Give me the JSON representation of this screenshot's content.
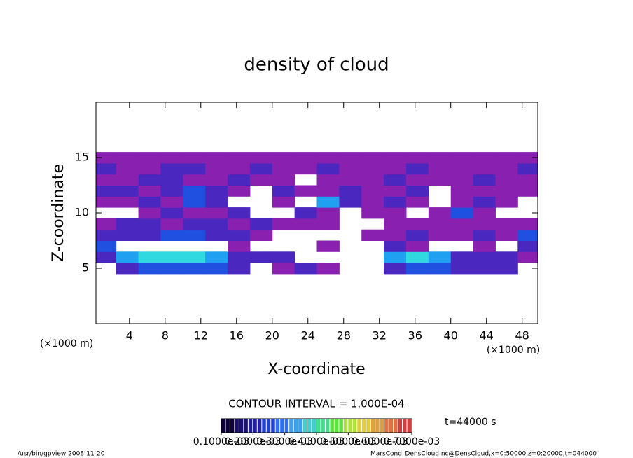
{
  "chart_data": {
    "type": "contour",
    "title": "density of cloud",
    "x_label": "X-coordinate",
    "y_label": "Z-coordinate",
    "x_unit_label": "(×1000 m)",
    "y_unit_label": "(×1000 m)",
    "contour_interval": "CONTOUR INTERVAL = 1.000E-04",
    "time_label": "t=44000 s",
    "footer_left": "/usr/bin/gpview   2008-11-20",
    "footer_right": "MarsCond_DensCloud.nc@DensCloud,x=0:50000,z=0:20000,t=044000",
    "xlim": [
      0.25,
      49.75
    ],
    "ylim": [
      0,
      20
    ],
    "xticks": [
      4,
      8,
      12,
      16,
      20,
      24,
      28,
      32,
      36,
      40,
      44,
      48
    ],
    "yticks": [
      5,
      10,
      15
    ],
    "x": [
      1.25,
      3.75,
      6.25,
      8.75,
      11.25,
      13.75,
      16.25,
      18.75,
      21.25,
      23.75,
      26.25,
      28.75,
      31.25,
      33.75,
      36.25,
      38.75,
      41.25,
      43.75,
      46.25,
      48.75
    ],
    "y": [
      5,
      6,
      7,
      8,
      9,
      10,
      11,
      12,
      13,
      14,
      15
    ],
    "levels": [
      0.0001,
      0.0002,
      0.0003,
      0.0004,
      0.0005
    ],
    "level_colors": [
      "#8a20b0",
      "#4a28c0",
      "#2050e0",
      "#20a0f0",
      "#30d8e0"
    ],
    "z": [
      [
        null,
        0.0002,
        0.0003,
        0.0003,
        0.0003,
        0.0003,
        0.0002,
        null,
        0.0001,
        0.0002,
        0.0001,
        null,
        null,
        0.0002,
        0.0003,
        0.0003,
        0.0002,
        0.0002,
        0.0002,
        null
      ],
      [
        0.0002,
        0.0004,
        0.0005,
        0.0005,
        0.0005,
        0.0004,
        0.0002,
        0.0002,
        0.0002,
        null,
        null,
        null,
        null,
        0.0004,
        0.0005,
        0.0004,
        0.0002,
        0.0002,
        0.0002,
        0.0001
      ],
      [
        0.0003,
        null,
        null,
        null,
        null,
        null,
        0.0001,
        null,
        null,
        null,
        0.0001,
        null,
        null,
        0.0002,
        0.0001,
        null,
        null,
        0.0001,
        null,
        0.0002
      ],
      [
        0.0002,
        0.0002,
        0.0002,
        0.0003,
        0.0003,
        0.0002,
        0.0002,
        0.0001,
        null,
        null,
        null,
        null,
        0.0001,
        0.0001,
        0.0002,
        0.0001,
        0.0001,
        0.0002,
        0.0001,
        0.0003
      ],
      [
        0.0001,
        0.0002,
        0.0002,
        0.0001,
        0.0002,
        0.0002,
        0.0001,
        0.0002,
        0.0001,
        0.0001,
        0.0001,
        null,
        null,
        0.0001,
        0.0001,
        0.0001,
        0.0001,
        0.0001,
        0.0001,
        0.0001
      ],
      [
        null,
        null,
        0.0001,
        0.0002,
        0.0001,
        0.0001,
        0.0002,
        null,
        null,
        0.0002,
        0.0001,
        null,
        0.0001,
        0.0001,
        null,
        0.0001,
        0.0003,
        0.0001,
        null,
        null
      ],
      [
        0.0001,
        0.0001,
        0.0002,
        0.0001,
        0.0003,
        0.0002,
        null,
        null,
        0.0001,
        null,
        0.0004,
        0.0002,
        0.0001,
        0.0002,
        0.0001,
        null,
        0.0001,
        0.0002,
        0.0001,
        null
      ],
      [
        0.0002,
        0.0002,
        0.0001,
        0.0002,
        0.0003,
        0.0002,
        0.0001,
        null,
        0.0002,
        0.0001,
        0.0001,
        0.0002,
        0.0001,
        0.0001,
        0.0002,
        null,
        0.0001,
        0.0001,
        0.0001,
        0.0001
      ],
      [
        0.0001,
        0.0001,
        0.0002,
        0.0002,
        0.0001,
        0.0001,
        0.0002,
        0.0001,
        0.0001,
        null,
        0.0001,
        0.0001,
        0.0001,
        0.0002,
        0.0001,
        0.0001,
        0.0001,
        0.0002,
        0.0001,
        0.0001
      ],
      [
        0.0002,
        0.0001,
        0.0001,
        0.0002,
        0.0002,
        0.0001,
        0.0001,
        0.0002,
        0.0001,
        0.0001,
        0.0002,
        0.0001,
        0.0001,
        0.0001,
        0.0002,
        0.0001,
        0.0001,
        0.0001,
        0.0001,
        0.0002
      ],
      [
        0.0001,
        0.0001,
        0.0001,
        0.0001,
        0.0001,
        0.0001,
        0.0001,
        0.0001,
        0.0001,
        0.0001,
        0.0001,
        0.0001,
        0.0001,
        0.0001,
        0.0001,
        0.0001,
        0.0001,
        0.0001,
        0.0001,
        0.0001
      ]
    ],
    "colorbar": {
      "lim": [
        0.0001,
        0.0007
      ],
      "colors": [
        "#100040",
        "#1a1070",
        "#2020a0",
        "#2040d0",
        "#3070f0",
        "#40a0f0",
        "#40d0d0",
        "#40e090",
        "#60e040",
        "#b0e040",
        "#e0d040",
        "#e0a040",
        "#e07040",
        "#d04040"
      ],
      "ticks": [
        {
          "value": 0.0001,
          "label": "0.1000e-03"
        },
        {
          "value": 0.0002,
          "label": "0.2000e-03"
        },
        {
          "value": 0.0003,
          "label": "0.3000e-03"
        },
        {
          "value": 0.0004,
          "label": "0.4000e-03"
        },
        {
          "value": 0.0005,
          "label": "0.5000e-03"
        },
        {
          "value": 0.0006,
          "label": "0.6000e-03"
        },
        {
          "value": 0.0007,
          "label": "0.7000e-03"
        }
      ]
    }
  }
}
